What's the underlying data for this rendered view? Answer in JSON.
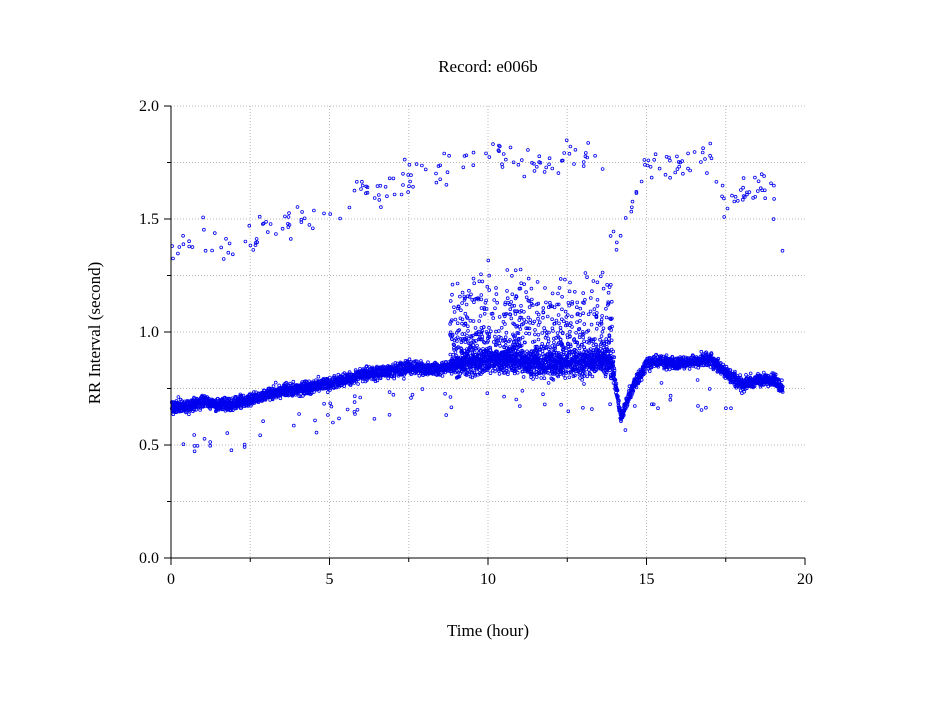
{
  "chart_data": {
    "type": "scatter",
    "title": "Record:  e006b",
    "xlabel": "Time (hour)",
    "ylabel": "RR Interval (second)",
    "xlim": [
      0,
      20
    ],
    "ylim": [
      0,
      2.0
    ],
    "x_ticks": [
      0,
      5,
      10,
      15,
      20
    ],
    "x_tick_labels": [
      "0",
      "5",
      "10",
      "15",
      "20"
    ],
    "y_ticks": [
      0,
      0.5,
      1.0,
      1.5,
      2.0
    ],
    "y_tick_labels": [
      "0.0",
      "0.5",
      "1.0",
      "1.5",
      "2.0"
    ],
    "grid": true,
    "marker": "small open circle",
    "point_color": "#0000ee",
    "trend": {
      "description": "baseline RR interval per time bin (hours, seconds)",
      "x": [
        0.0,
        0.5,
        1.0,
        1.5,
        2.0,
        2.5,
        3.0,
        3.5,
        4.0,
        4.5,
        5.0,
        5.5,
        6.0,
        6.5,
        7.0,
        7.5,
        8.0,
        8.5,
        9.0,
        9.5,
        10.0,
        10.5,
        11.0,
        11.5,
        12.0,
        12.5,
        13.0,
        13.5,
        13.9,
        14.2,
        14.5,
        15.0,
        15.5,
        16.0,
        16.5,
        17.0,
        17.5,
        18.0,
        18.5,
        19.0,
        19.3
      ],
      "y": [
        0.67,
        0.67,
        0.69,
        0.68,
        0.68,
        0.7,
        0.72,
        0.74,
        0.75,
        0.76,
        0.77,
        0.79,
        0.81,
        0.82,
        0.83,
        0.84,
        0.84,
        0.84,
        0.85,
        0.86,
        0.87,
        0.87,
        0.86,
        0.85,
        0.85,
        0.86,
        0.86,
        0.87,
        0.86,
        0.62,
        0.74,
        0.86,
        0.87,
        0.86,
        0.87,
        0.88,
        0.82,
        0.77,
        0.79,
        0.79,
        0.75
      ]
    },
    "upper_band": {
      "description": "sparse outlier beats (hours, seconds)",
      "x": [
        0.0,
        1.0,
        2.0,
        3.0,
        4.0,
        5.0,
        6.0,
        7.0,
        7.5,
        8.0,
        9.0,
        10.0,
        11.0,
        12.0,
        13.0,
        13.5,
        14.0,
        15.0,
        16.0,
        17.0,
        17.5,
        18.0,
        18.5,
        19.0,
        19.3
      ],
      "y": [
        1.33,
        1.42,
        1.34,
        1.45,
        1.5,
        1.52,
        1.62,
        1.64,
        1.7,
        1.68,
        1.76,
        1.78,
        1.76,
        1.75,
        1.78,
        1.78,
        1.35,
        1.74,
        1.75,
        1.76,
        1.58,
        1.6,
        1.66,
        1.6,
        1.42
      ]
    }
  }
}
